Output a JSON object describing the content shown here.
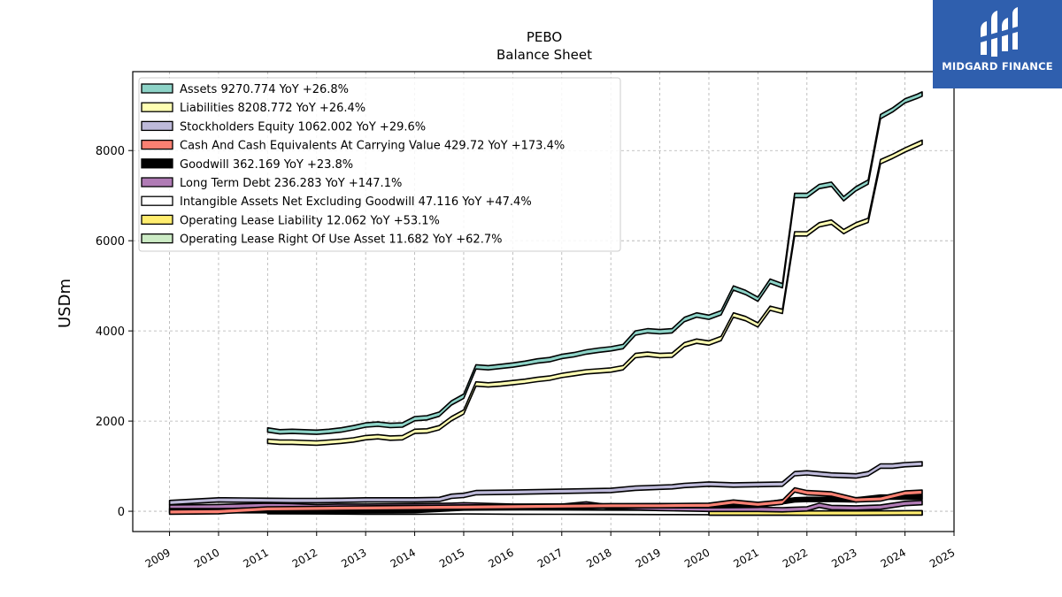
{
  "brand": {
    "name": "MIDGARD FINANCE",
    "bg_color": "#2f5fae"
  },
  "chart_data": {
    "type": "area",
    "title": "PEBO",
    "subtitle": "Balance  Sheet",
    "xlabel": "",
    "ylabel": "USDm",
    "xlim": [
      2008.25,
      2025.0
    ],
    "ylim": [
      -450,
      9750
    ],
    "x_ticks": [
      2009,
      2010,
      2011,
      2012,
      2013,
      2014,
      2015,
      2016,
      2017,
      2018,
      2019,
      2020,
      2021,
      2022,
      2023,
      2024,
      2025
    ],
    "y_ticks": [
      0,
      2000,
      4000,
      6000,
      8000
    ],
    "grid": true,
    "legend_position": "top-left",
    "series": [
      {
        "name": "Assets",
        "legend": "Assets  9270.774 YoY +26.8%",
        "color": "#8dd3c7",
        "x": [
          2011.0,
          2011.25,
          2011.5,
          2011.75,
          2012.0,
          2012.25,
          2012.5,
          2012.75,
          2013.0,
          2013.25,
          2013.5,
          2013.75,
          2014.0,
          2014.25,
          2014.5,
          2014.75,
          2015.0,
          2015.25,
          2015.5,
          2015.75,
          2016.0,
          2016.25,
          2016.5,
          2016.75,
          2017.0,
          2017.25,
          2017.5,
          2017.75,
          2018.0,
          2018.25,
          2018.5,
          2018.75,
          2019.0,
          2019.25,
          2019.5,
          2019.75,
          2020.0,
          2020.25,
          2020.5,
          2020.75,
          2021.0,
          2021.25,
          2021.5,
          2021.75,
          2022.0,
          2022.25,
          2022.5,
          2022.75,
          2023.0,
          2023.25,
          2023.5,
          2023.75,
          2024.0,
          2024.25,
          2024.35
        ],
        "values": [
          1850,
          1810,
          1820,
          1810,
          1800,
          1820,
          1850,
          1900,
          1960,
          1980,
          1950,
          1960,
          2100,
          2120,
          2200,
          2450,
          2600,
          3250,
          3230,
          3260,
          3290,
          3330,
          3380,
          3410,
          3480,
          3520,
          3580,
          3620,
          3650,
          3700,
          4000,
          4050,
          4030,
          4050,
          4300,
          4400,
          4350,
          4450,
          5000,
          4900,
          4750,
          5150,
          5050,
          7050,
          7050,
          7250,
          7300,
          6980,
          7200,
          7350,
          8800,
          8950,
          9150,
          9250,
          9300
        ]
      },
      {
        "name": "Liabilities",
        "legend": "Liabilities  8208.772 YoY +26.4%",
        "color": "#ffffb3",
        "x": [
          2011.0,
          2011.25,
          2011.5,
          2011.75,
          2012.0,
          2012.25,
          2012.5,
          2012.75,
          2013.0,
          2013.25,
          2013.5,
          2013.75,
          2014.0,
          2014.25,
          2014.5,
          2014.75,
          2015.0,
          2015.25,
          2015.5,
          2015.75,
          2016.0,
          2016.25,
          2016.5,
          2016.75,
          2017.0,
          2017.25,
          2017.5,
          2017.75,
          2018.0,
          2018.25,
          2018.5,
          2018.75,
          2019.0,
          2019.25,
          2019.5,
          2019.75,
          2020.0,
          2020.25,
          2020.5,
          2020.75,
          2021.0,
          2021.25,
          2021.5,
          2021.75,
          2022.0,
          2022.25,
          2022.5,
          2022.75,
          2023.0,
          2023.25,
          2023.5,
          2023.75,
          2024.0,
          2024.25,
          2024.35
        ],
        "values": [
          1600,
          1580,
          1580,
          1570,
          1560,
          1580,
          1600,
          1630,
          1680,
          1700,
          1670,
          1680,
          1820,
          1830,
          1900,
          2100,
          2250,
          2870,
          2850,
          2870,
          2900,
          2930,
          2970,
          3000,
          3060,
          3100,
          3140,
          3160,
          3180,
          3230,
          3500,
          3530,
          3500,
          3510,
          3740,
          3820,
          3780,
          3880,
          4400,
          4320,
          4180,
          4550,
          4480,
          6200,
          6200,
          6400,
          6460,
          6250,
          6400,
          6500,
          7800,
          7920,
          8060,
          8180,
          8230
        ]
      },
      {
        "name": "Stockholders Equity",
        "legend": "Stockholders Equity  1062.002 YoY +29.6%",
        "color": "#bebada",
        "x": [
          2009.0,
          2009.5,
          2010.0,
          2010.5,
          2011.0,
          2011.5,
          2012.0,
          2012.5,
          2013.0,
          2013.5,
          2014.0,
          2014.5,
          2014.75,
          2015.0,
          2015.25,
          2016.0,
          2016.5,
          2017.0,
          2017.5,
          2018.0,
          2018.5,
          2019.0,
          2019.25,
          2019.5,
          2020.0,
          2020.5,
          2021.0,
          2021.5,
          2021.75,
          2022.0,
          2022.5,
          2023.0,
          2023.25,
          2023.5,
          2023.75,
          2024.0,
          2024.35
        ],
        "values": [
          240,
          270,
          300,
          295,
          290,
          285,
          285,
          290,
          300,
          300,
          300,
          310,
          380,
          400,
          460,
          470,
          480,
          490,
          500,
          510,
          560,
          580,
          590,
          620,
          650,
          630,
          640,
          650,
          880,
          900,
          850,
          830,
          880,
          1050,
          1050,
          1080,
          1100
        ]
      },
      {
        "name": "Cash And Cash Equivalents At Carrying Value",
        "legend": "Cash And Cash Equivalents At Carrying Value  429.72 YoY +173.4%",
        "color": "#fb8072",
        "x": [
          2009.0,
          2010.0,
          2011.0,
          2012.0,
          2013.0,
          2014.0,
          2015.0,
          2016.0,
          2017.0,
          2018.0,
          2019.0,
          2020.0,
          2020.5,
          2021.0,
          2021.5,
          2021.75,
          2022.0,
          2022.5,
          2023.0,
          2023.5,
          2024.0,
          2024.35
        ],
        "values": [
          30,
          40,
          100,
          110,
          120,
          130,
          140,
          150,
          160,
          170,
          170,
          180,
          250,
          200,
          250,
          520,
          460,
          430,
          300,
          320,
          450,
          470
        ]
      },
      {
        "name": "Goodwill",
        "legend": "Goodwill  362.169 YoY +23.8%",
        "color": "#000000",
        "x": [
          2009.0,
          2010.0,
          2011.0,
          2012.0,
          2013.0,
          2014.0,
          2015.0,
          2016.0,
          2017.0,
          2018.0,
          2019.0,
          2020.0,
          2021.0,
          2021.75,
          2022.0,
          2022.5,
          2023.0,
          2023.5,
          2024.0,
          2024.35
        ],
        "values": [
          60,
          60,
          60,
          60,
          60,
          65,
          120,
          130,
          140,
          160,
          170,
          170,
          180,
          300,
          310,
          310,
          300,
          360,
          360,
          360
        ]
      },
      {
        "name": "Long Term Debt",
        "legend": "Long Term Debt  236.283 YoY +147.1%",
        "color": "#b07bb5",
        "x": [
          2009.0,
          2010.0,
          2011.0,
          2011.5,
          2012.0,
          2012.5,
          2013.0,
          2014.0,
          2014.75,
          2015.0,
          2016.0,
          2016.5,
          2017.0,
          2017.5,
          2018.0,
          2019.0,
          2020.0,
          2021.0,
          2021.5,
          2022.0,
          2022.25,
          2022.5,
          2023.0,
          2023.5,
          2024.0,
          2024.35
        ],
        "values": [
          140,
          150,
          180,
          170,
          150,
          160,
          160,
          170,
          180,
          190,
          160,
          160,
          160,
          210,
          140,
          110,
          90,
          90,
          80,
          100,
          180,
          130,
          120,
          140,
          220,
          240
        ]
      },
      {
        "name": "Intangible Assets Net Excluding Goodwill",
        "legend": "Intangible Assets Net Excluding Goodwill  47.116 YoY +47.4%",
        "color": "#ffffff",
        "x": [
          2011.0,
          2012.0,
          2013.0,
          2014.0,
          2015.0,
          2016.0,
          2017.0,
          2018.0,
          2019.0,
          2020.0
        ],
        "values": [
          40,
          35,
          30,
          30,
          35,
          30,
          28,
          25,
          22,
          20
        ]
      },
      {
        "name": "Operating Lease Liability",
        "legend": "Operating Lease Liability  12.062 YoY +53.1%",
        "color": "#ffed6f",
        "x": [
          2020.0,
          2021.0,
          2022.0,
          2023.0,
          2024.0,
          2024.35
        ],
        "values": [
          10,
          9,
          8,
          8,
          11,
          12
        ]
      },
      {
        "name": "Operating Lease Right Of Use Asset",
        "legend": "Operating Lease Right Of Use Asset  11.682 YoY +62.7%",
        "color": "#ccebc5",
        "x": [
          2020.0,
          2021.0,
          2022.0,
          2023.0,
          2024.0,
          2024.35
        ],
        "values": [
          9,
          9,
          8,
          8,
          11,
          12
        ]
      }
    ]
  }
}
